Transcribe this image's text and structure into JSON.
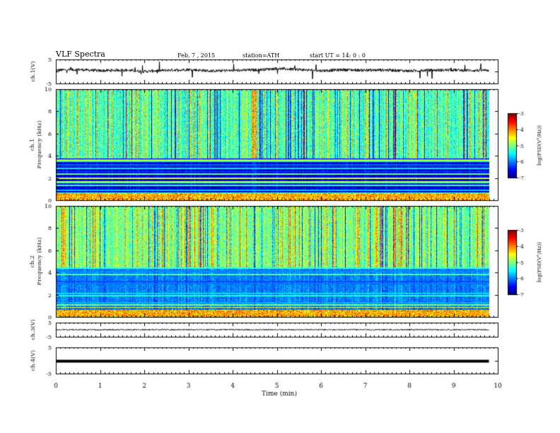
{
  "header": {
    "title": "VLF Spectra",
    "date": "Feb. 7 , 2015",
    "station": "station=ATH",
    "start": "start UT = 14: 0 : 0"
  },
  "chart_data": [
    {
      "type": "line",
      "name": "ch1-waveform",
      "ylabel": "ch.1(V)",
      "ylim": [
        -5,
        5
      ],
      "yticks": [
        "5",
        "-5"
      ],
      "x": [
        0,
        0.5,
        1,
        1.5,
        2,
        2.5,
        3,
        3.5,
        4,
        4.5,
        5,
        5.5,
        6,
        6.5,
        7,
        7.5,
        8,
        8.5,
        9,
        9.5,
        9.8
      ],
      "y": [
        0.5,
        0.8,
        0.3,
        0.6,
        0.0,
        0.5,
        0.8,
        0.2,
        0.4,
        0.6,
        1.2,
        0.8,
        0.3,
        0.7,
        0.5,
        0.6,
        0.2,
        0.5,
        0.6,
        0.4,
        0.5
      ]
    },
    {
      "type": "heatmap",
      "name": "ch1-spectrogram",
      "ylabel": "ch.1\nFrequency (kHz)",
      "ylim": [
        0,
        10
      ],
      "yticks": [
        "0",
        "2",
        "4",
        "6",
        "8",
        "10"
      ],
      "colorbar": {
        "label": "log(PSD(V²/Hz))",
        "range": [
          -7,
          -3
        ],
        "ticks": [
          "-3",
          "-4",
          "-5",
          "-6",
          "-7"
        ]
      },
      "lower_band_khz": [
        0,
        3.8
      ],
      "upper_band_khz": [
        3.8,
        10
      ],
      "typical_log_psd_upper": -5.2,
      "typical_log_psd_lower": -6.6
    },
    {
      "type": "heatmap",
      "name": "ch2-spectrogram",
      "ylabel": "ch.2\nFrequency (kHz)",
      "ylim": [
        0,
        10
      ],
      "yticks": [
        "0",
        "2",
        "4",
        "6",
        "8",
        "10"
      ],
      "colorbar": {
        "label": "log(PSD(V²/Hz))",
        "range": [
          -7,
          -3
        ],
        "ticks": [
          "-3",
          "-4",
          "-5",
          "-6",
          "-7"
        ]
      },
      "lower_band_khz": [
        0,
        4.5
      ],
      "upper_band_khz": [
        4.5,
        10
      ],
      "typical_log_psd_upper": -5.0,
      "typical_log_psd_lower": -6.0
    },
    {
      "type": "line",
      "name": "ch3-waveform",
      "ylabel": "ch.3(V)",
      "ylim": [
        -5,
        5
      ],
      "yticks": [
        "5",
        "-5"
      ],
      "x": [
        0,
        9.8
      ],
      "y": [
        0,
        0
      ]
    },
    {
      "type": "line",
      "name": "ch4-waveform",
      "ylabel": "ch.4(V)",
      "ylim": [
        -5,
        5
      ],
      "yticks": [
        "5",
        "-5"
      ],
      "x": [
        0,
        9.8
      ],
      "y": [
        0,
        0
      ]
    }
  ],
  "xaxis": {
    "label": "Time (min)",
    "xlim": [
      0,
      10
    ],
    "ticks": [
      "0",
      "1",
      "2",
      "3",
      "4",
      "5",
      "6",
      "7",
      "8",
      "9",
      "10"
    ]
  }
}
